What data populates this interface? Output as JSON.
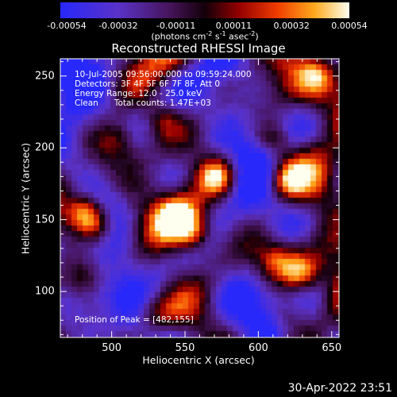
{
  "chart_data": {
    "type": "heatmap",
    "title": "Reconstructed RHESSI Image",
    "xlabel": "Heliocentric X (arcsec)",
    "ylabel": "Heliocentric Y (arcsec)",
    "xlim": [
      465,
      655
    ],
    "ylim": [
      68,
      262
    ],
    "x_ticks": [
      500,
      550,
      600,
      650
    ],
    "y_ticks": [
      100,
      150,
      200,
      250
    ],
    "colorbar": {
      "range": [
        -0.00054,
        0.00054
      ],
      "tick_labels": [
        "-0.00054",
        "-0.00032",
        "-0.00011",
        "0.00011",
        "0.00032",
        "0.00054"
      ],
      "units_text": "(photons cm",
      "units_exp1": "-2",
      "units_mid": " s",
      "units_exp2": "-1",
      "units_mid2": " asec",
      "units_exp3": "-2",
      "units_end": ")"
    },
    "annotations": {
      "time_range": "10-Jul-2005 09:56:00.000 to 09:59:24.000",
      "detectors": "Detectors: 3F 4F 5F 6F 7F 8F, Att 0",
      "energy_range": "Energy Range: 12.0 - 25.0 keV",
      "clean": "Clean      Total counts: 1.47E+03",
      "peak": "Position of Peak = [482,155]"
    },
    "sources": [
      {
        "x": 482,
        "y": 155,
        "peak": 1.0
      },
      {
        "x": 490,
        "y": 145,
        "peak": 0.7
      },
      {
        "x": 572,
        "y": 180,
        "peak": 0.95
      },
      {
        "x": 545,
        "y": 152,
        "peak": 0.85
      },
      {
        "x": 556,
        "y": 140,
        "peak": 0.7
      },
      {
        "x": 620,
        "y": 178,
        "peak": 0.85
      },
      {
        "x": 610,
        "y": 205,
        "peak": 0.6
      },
      {
        "x": 628,
        "y": 113,
        "peak": 0.75
      },
      {
        "x": 612,
        "y": 122,
        "peak": 0.55
      },
      {
        "x": 535,
        "y": 220,
        "peak": 0.5
      },
      {
        "x": 505,
        "y": 205,
        "peak": 0.45
      },
      {
        "x": 640,
        "y": 250,
        "peak": 0.5
      },
      {
        "x": 620,
        "y": 83,
        "peak": 0.45
      },
      {
        "x": 530,
        "y": 85,
        "peak": 0.4
      },
      {
        "x": 480,
        "y": 110,
        "peak": 0.45
      }
    ]
  },
  "timestamp": "30-Apr-2022 23:51"
}
